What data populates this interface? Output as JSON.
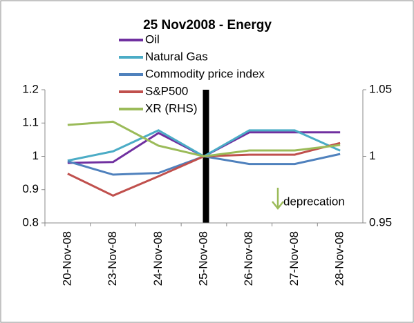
{
  "chart_data": {
    "type": "line",
    "title": "25 Nov2008 - Energy",
    "categories": [
      "20-Nov-08",
      "23-Nov-08",
      "24-Nov-08",
      "25-Nov-08",
      "26-Nov-08",
      "27-Nov-08",
      "28-Nov-08"
    ],
    "series": [
      {
        "name": "Oil",
        "color": "#7030a0",
        "values": [
          0.98,
          0.983,
          1.07,
          1.0,
          1.072,
          1.072,
          1.072
        ]
      },
      {
        "name": "Natural Gas",
        "color": "#4bacc6",
        "values": [
          0.987,
          1.015,
          1.078,
          1.0,
          1.078,
          1.078,
          1.017
        ]
      },
      {
        "name": "Commodity price index",
        "color": "#4f81bd",
        "values": [
          0.985,
          0.945,
          0.95,
          1.0,
          0.977,
          0.977,
          1.007
        ]
      },
      {
        "name": "S&P500",
        "color": "#c0504d",
        "values": [
          0.948,
          0.882,
          0.94,
          1.0,
          1.005,
          1.005,
          1.04
        ]
      },
      {
        "name": "XR (RHS)",
        "color": "#9bbb59",
        "axis": "y2",
        "values": [
          1.0236,
          1.026,
          1.008,
          1.0,
          1.0044,
          1.0044,
          1.0085
        ]
      }
    ],
    "ylim": [
      0.8,
      1.2
    ],
    "yticks": [
      0.8,
      0.9,
      1,
      1.1,
      1.2
    ],
    "y2lim": [
      0.95,
      1.05
    ],
    "y2ticks": [
      0.95,
      1,
      1.05
    ],
    "annotation": "deprecation",
    "grid": false
  }
}
